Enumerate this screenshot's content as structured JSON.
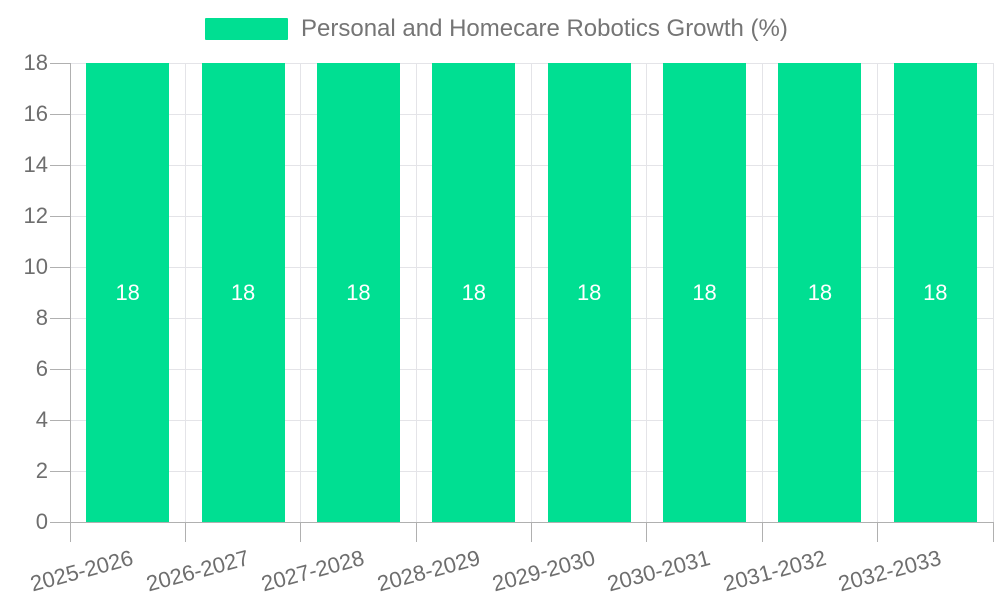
{
  "chart_data": {
    "type": "bar",
    "title": "Personal and Homecare Robotics Growth (%)",
    "legend": {
      "entries": [
        "Personal and Homecare Robotics Growth (%)"
      ],
      "position": "top-center"
    },
    "categories": [
      "2025-2026",
      "2026-2027",
      "2027-2028",
      "2028-2029",
      "2029-2030",
      "2030-2031",
      "2031-2032",
      "2032-2033"
    ],
    "series": [
      {
        "name": "Personal and Homecare Robotics Growth (%)",
        "values": [
          18,
          18,
          18,
          18,
          18,
          18,
          18,
          18
        ]
      }
    ],
    "bar_value_labels": [
      "18",
      "18",
      "18",
      "18",
      "18",
      "18",
      "18",
      "18"
    ],
    "xlabel": "",
    "ylabel": "",
    "ylim": [
      0,
      18
    ],
    "yticks": [
      0,
      2,
      4,
      6,
      8,
      10,
      12,
      14,
      16,
      18
    ],
    "grid": true,
    "x_label_rotation_deg": -15,
    "colors": {
      "bar": "#00DF92",
      "grid": "#e4e4e8",
      "axis": "#b0b0b0",
      "tick_label": "#6e6e6e",
      "legend_text": "#757575",
      "value_label": "#ffffff",
      "background": "#ffffff"
    }
  }
}
